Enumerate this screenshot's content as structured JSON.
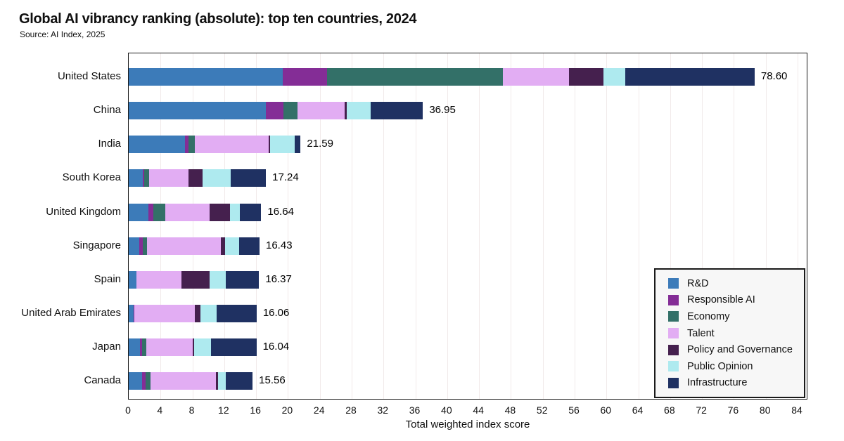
{
  "title": "Global AI vibrancy ranking (absolute): top ten countries, 2024",
  "source": "Source: AI Index, 2025",
  "chart_data": {
    "type": "bar",
    "orientation": "horizontal",
    "stacked": true,
    "title": "Global AI vibrancy ranking (absolute): top ten countries, 2024",
    "subtitle": "Source: AI Index, 2025",
    "xlabel": "Total weighted index score",
    "ylabel": "",
    "xlim": [
      0,
      84
    ],
    "xticks": [
      0,
      4,
      8,
      12,
      16,
      20,
      24,
      28,
      32,
      36,
      40,
      44,
      48,
      52,
      56,
      60,
      64,
      68,
      72,
      76,
      80,
      84
    ],
    "grid": true,
    "legend_position": "bottom-right",
    "categories": [
      "United States",
      "China",
      "India",
      "South Korea",
      "United Kingdom",
      "Singapore",
      "Spain",
      "United Arab Emirates",
      "Japan",
      "Canada"
    ],
    "totals": [
      78.6,
      36.95,
      21.59,
      17.24,
      16.64,
      16.43,
      16.37,
      16.06,
      16.04,
      15.56
    ],
    "totals_display": [
      "78.60",
      "36.95",
      "21.59",
      "17.24",
      "16.64",
      "16.43",
      "16.37",
      "16.06",
      "16.04",
      "15.56"
    ],
    "series": [
      {
        "name": "R&D",
        "color": "#3c7bb9",
        "values": [
          19.3,
          17.2,
          7.1,
          1.75,
          2.47,
          1.35,
          0.95,
          0.65,
          1.45,
          1.65
        ]
      },
      {
        "name": "Responsible AI",
        "color": "#842d96",
        "values": [
          5.6,
          2.2,
          0.38,
          0.2,
          0.65,
          0.39,
          0.02,
          0.02,
          0.21,
          0.47
        ]
      },
      {
        "name": "Economy",
        "color": "#337068",
        "values": [
          22.1,
          1.8,
          0.8,
          0.6,
          1.47,
          0.58,
          0.04,
          0.03,
          0.58,
          0.64
        ]
      },
      {
        "name": "Talent",
        "color": "#e2adf3",
        "values": [
          8.3,
          5.9,
          9.3,
          4.95,
          5.6,
          9.25,
          5.6,
          7.6,
          5.8,
          8.2
        ]
      },
      {
        "name": "Policy and Governance",
        "color": "#45204e",
        "values": [
          4.3,
          0.25,
          0.2,
          1.77,
          2.55,
          0.53,
          3.55,
          0.74,
          0.2,
          0.29
        ]
      },
      {
        "name": "Public Opinion",
        "color": "#aeeaef",
        "values": [
          2.8,
          3.0,
          3.1,
          3.55,
          1.25,
          1.77,
          2.05,
          2.0,
          2.07,
          0.95
        ]
      },
      {
        "name": "Infrastructure",
        "color": "#1f3162",
        "values": [
          16.2,
          6.6,
          0.71,
          4.42,
          2.65,
          2.56,
          4.16,
          5.02,
          5.73,
          3.36
        ]
      }
    ],
    "gridline_color": "#f1eaea"
  }
}
